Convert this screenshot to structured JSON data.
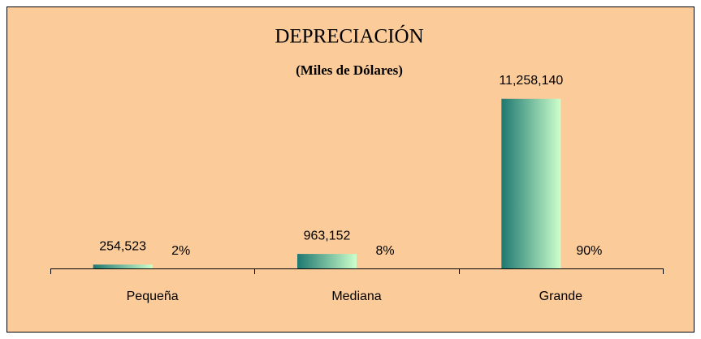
{
  "chart_data": {
    "type": "bar",
    "title": "DEPRECIACIÓN",
    "subtitle": "(Miles de Dólares)",
    "categories": [
      "Pequeña",
      "Mediana",
      "Grande"
    ],
    "values": [
      254523,
      963152,
      11258140
    ],
    "value_labels": [
      "254,523",
      "963,152",
      "11,258,140"
    ],
    "percentages": [
      2,
      8,
      90
    ],
    "percentage_labels": [
      "2%",
      "8%",
      "90%"
    ],
    "color": [
      "#1e7870",
      "#ccffcc"
    ],
    "background": "#fbcb9a",
    "ylim": [
      0,
      12000000
    ]
  }
}
